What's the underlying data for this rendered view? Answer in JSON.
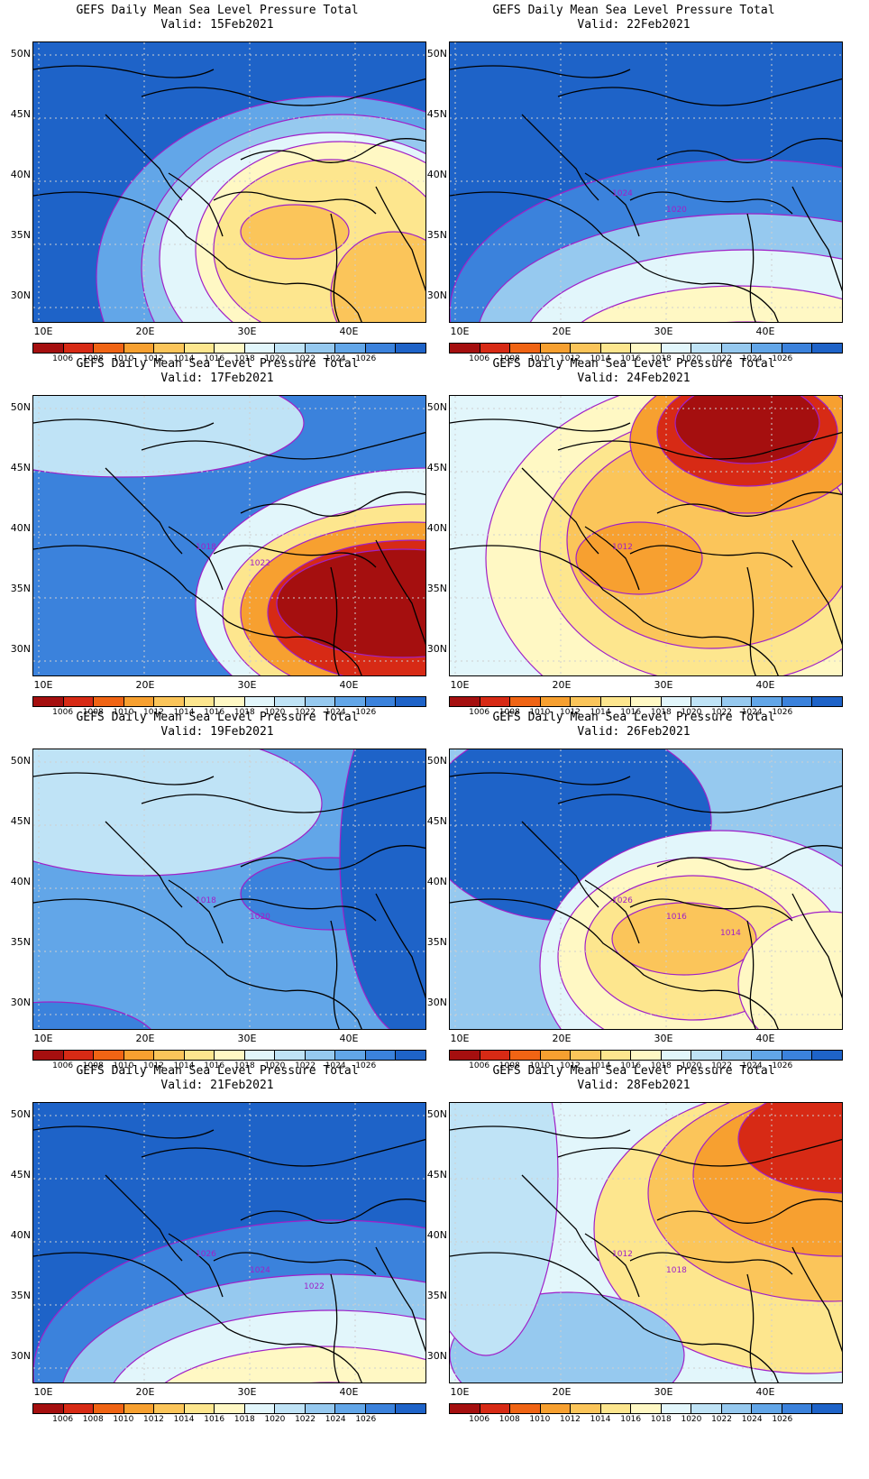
{
  "title": "GEFS Daily Mean Sea Level Pressure Total",
  "panels": [
    {
      "valid": "Valid:  15Feb2021",
      "contour_labels": [],
      "shading_profile": "high_west_low_southeast"
    },
    {
      "valid": "Valid:  22Feb2021",
      "contour_labels": [
        "1024",
        "1020"
      ],
      "shading_profile": "high_north_low_south"
    },
    {
      "valid": "Valid:  17Feb2021",
      "contour_labels": [
        "1018",
        "1022"
      ],
      "shading_profile": "high_west_deep_low_east"
    },
    {
      "valid": "Valid:  24Feb2021",
      "contour_labels": [
        "1012"
      ],
      "shading_profile": "low_north_and_aegean"
    },
    {
      "valid": "Valid:  19Feb2021",
      "contour_labels": [
        "1018",
        "1020"
      ],
      "shading_profile": "uniform_high"
    },
    {
      "valid": "Valid:  26Feb2021",
      "contour_labels": [
        "1026",
        "1016",
        "1014"
      ],
      "shading_profile": "high_north_low_cyprus"
    },
    {
      "valid": "Valid:  21Feb2021",
      "contour_labels": [
        "1026",
        "1024",
        "1022"
      ],
      "shading_profile": "high_north_low_south"
    },
    {
      "valid": "Valid:  28Feb2021",
      "contour_labels": [
        "1012",
        "1018"
      ],
      "shading_profile": "low_northeast"
    }
  ],
  "axes": {
    "lat_ticks": [
      "50N",
      "45N",
      "40N",
      "35N",
      "30N"
    ],
    "lon_ticks": [
      "10E",
      "20E",
      "30E",
      "40E"
    ]
  },
  "colorbar": {
    "labels": [
      "1006",
      "1008",
      "1010",
      "1012",
      "1014",
      "1016",
      "1018",
      "1020",
      "1022",
      "1024",
      "1026"
    ],
    "colors": [
      "#a50f0f",
      "#d72a15",
      "#f06414",
      "#f7a030",
      "#fbc55a",
      "#fde68e",
      "#fff8c4",
      "#e2f6fb",
      "#bfe3f6",
      "#96c9ef",
      "#62a6e8",
      "#3b82dc",
      "#1e63c8"
    ]
  },
  "contour_color": "#a020c8"
}
